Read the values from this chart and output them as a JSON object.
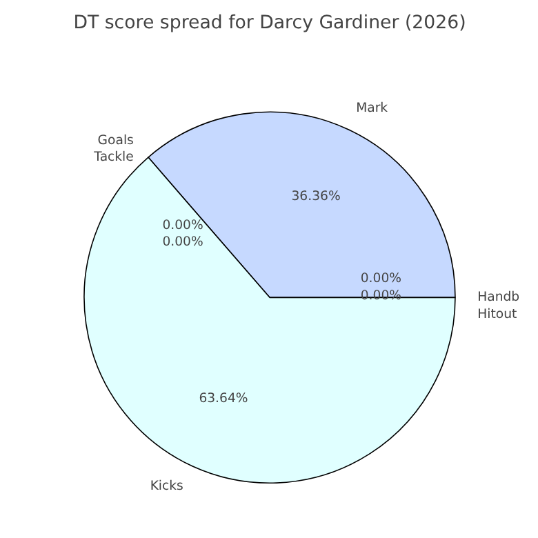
{
  "chart_data": {
    "type": "pie",
    "title": "DT score spread for Darcy Gardiner (2026)",
    "categories": [
      "Mark",
      "Goals",
      "Tackle",
      "Kicks",
      "Handb",
      "Hitout"
    ],
    "values": [
      36.36,
      0,
      0,
      63.64,
      0,
      0
    ],
    "colors": [
      "#c6d9ff",
      "#ffe0e0",
      "#e0ffe0",
      "#e0ffff",
      "#fff0c0",
      "#f0e0ff"
    ],
    "value_labels": [
      "36.36%",
      "0.00%",
      "0.00%",
      "63.64%",
      "0.00%",
      "0.00%"
    ]
  }
}
